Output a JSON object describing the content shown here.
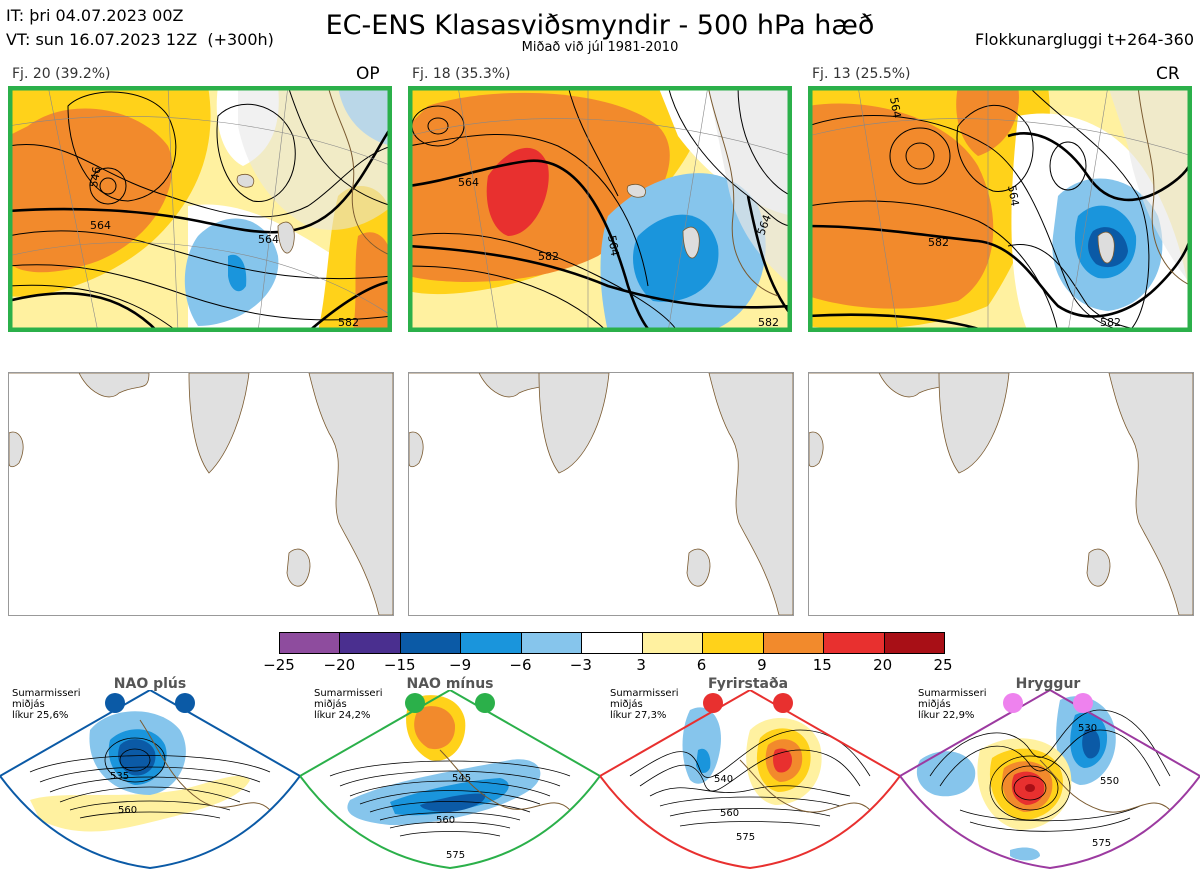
{
  "header": {
    "it_line": "IT: þri 04.07.2023 00Z",
    "vt_line": "VT: sun 16.07.2023 12Z  (+300h)",
    "title": "EC-ENS Klasasviðsmyndir - 500 hPa hæð",
    "subtitle": "Miðað við júl 1981-2010",
    "window": "Flokkunargluggi t+264-360"
  },
  "clusters": [
    {
      "label": "Fj. 20 (39.2%)",
      "code": "OP",
      "contours": [
        "546",
        "564",
        "564",
        "582"
      ]
    },
    {
      "label": "Fj. 18 (35.3%)",
      "code": "",
      "contours": [
        "564",
        "582",
        "564",
        "564",
        "582"
      ]
    },
    {
      "label": "Fj. 13 (25.5%)",
      "code": "CR",
      "contours": [
        "564",
        "582",
        "564",
        "582"
      ]
    }
  ],
  "colorbar": {
    "ticks": [
      "−25",
      "−20",
      "−15",
      "−9",
      "−6",
      "−3",
      "3",
      "6",
      "9",
      "15",
      "20",
      "25"
    ],
    "colors": [
      "#8e4c9e",
      "#4a2f8f",
      "#0b5aa6",
      "#1a95dc",
      "#86c5ec",
      "#ffffff",
      "#fff1a0",
      "#ffd21a",
      "#f28a2c",
      "#e8302f",
      "#a80f16"
    ]
  },
  "regimes": [
    {
      "name": "NAO plús",
      "note": "Sumarmisseri\nmiðjás\nlíkur 25,6%",
      "color": "#0b5aa6",
      "contours": [
        "535",
        "560"
      ]
    },
    {
      "name": "NAO mínus",
      "note": "Sumarmisseri\nmiðjás\nlíkur 24,2%",
      "color": "#2bb04a",
      "contours": [
        "545",
        "560",
        "575"
      ]
    },
    {
      "name": "Fyrirstaða",
      "note": "Sumarmisseri\nmiðjás\nlíkur 27,3%",
      "color": "#e8302f",
      "contours": [
        "540",
        "560",
        "575"
      ]
    },
    {
      "name": "Hryggur",
      "note": "Sumarmisseri\nmiðjás\nlíkur 22,9%",
      "color": "#9c3aa0",
      "contours": [
        "530",
        "550",
        "575"
      ]
    }
  ]
}
